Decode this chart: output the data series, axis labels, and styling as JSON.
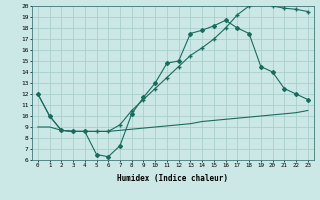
{
  "xlabel": "Humidex (Indice chaleur)",
  "bg_color": "#cce8e6",
  "grid_color": "#aacfcc",
  "line_color": "#1a6b5e",
  "xlim": [
    -0.5,
    23.5
  ],
  "ylim": [
    6,
    20
  ],
  "xticks": [
    0,
    1,
    2,
    3,
    4,
    5,
    6,
    7,
    8,
    9,
    10,
    11,
    12,
    13,
    14,
    15,
    16,
    17,
    18,
    19,
    20,
    21,
    22,
    23
  ],
  "yticks": [
    6,
    7,
    8,
    9,
    10,
    11,
    12,
    13,
    14,
    15,
    16,
    17,
    18,
    19,
    20
  ],
  "curve_flat_x": [
    0,
    1,
    2,
    3,
    4,
    5,
    6,
    7,
    8,
    9,
    10,
    11,
    12,
    13,
    14,
    15,
    16,
    17,
    18,
    19,
    20,
    21,
    22,
    23
  ],
  "curve_flat_y": [
    9.0,
    9.0,
    8.7,
    8.6,
    8.6,
    8.6,
    8.6,
    8.7,
    8.8,
    8.9,
    9.0,
    9.1,
    9.2,
    9.3,
    9.5,
    9.6,
    9.7,
    9.8,
    9.9,
    10.0,
    10.1,
    10.2,
    10.3,
    10.5
  ],
  "curve_mid_x": [
    0,
    1,
    2,
    3,
    4,
    5,
    6,
    7,
    8,
    9,
    10,
    11,
    12,
    13,
    14,
    15,
    16,
    17,
    18,
    19,
    20,
    21,
    22,
    23
  ],
  "curve_mid_y": [
    12.0,
    10.0,
    8.7,
    8.6,
    8.6,
    6.5,
    6.3,
    7.3,
    10.2,
    11.7,
    13.0,
    14.8,
    15.0,
    17.5,
    17.8,
    18.2,
    18.7,
    18.0,
    17.5,
    14.5,
    14.0,
    12.5,
    12.0,
    11.5
  ],
  "curve_top_x": [
    0,
    1,
    2,
    3,
    4,
    5,
    6,
    7,
    8,
    9,
    10,
    11,
    12,
    13,
    14,
    15,
    16,
    17,
    18,
    19,
    20,
    21,
    22,
    23
  ],
  "curve_top_y": [
    12.0,
    10.0,
    8.7,
    8.6,
    8.6,
    8.6,
    8.6,
    9.2,
    10.5,
    11.5,
    12.5,
    13.5,
    14.5,
    15.5,
    16.2,
    17.0,
    18.0,
    19.2,
    20.0,
    20.5,
    20.0,
    19.8,
    19.7,
    19.5
  ]
}
